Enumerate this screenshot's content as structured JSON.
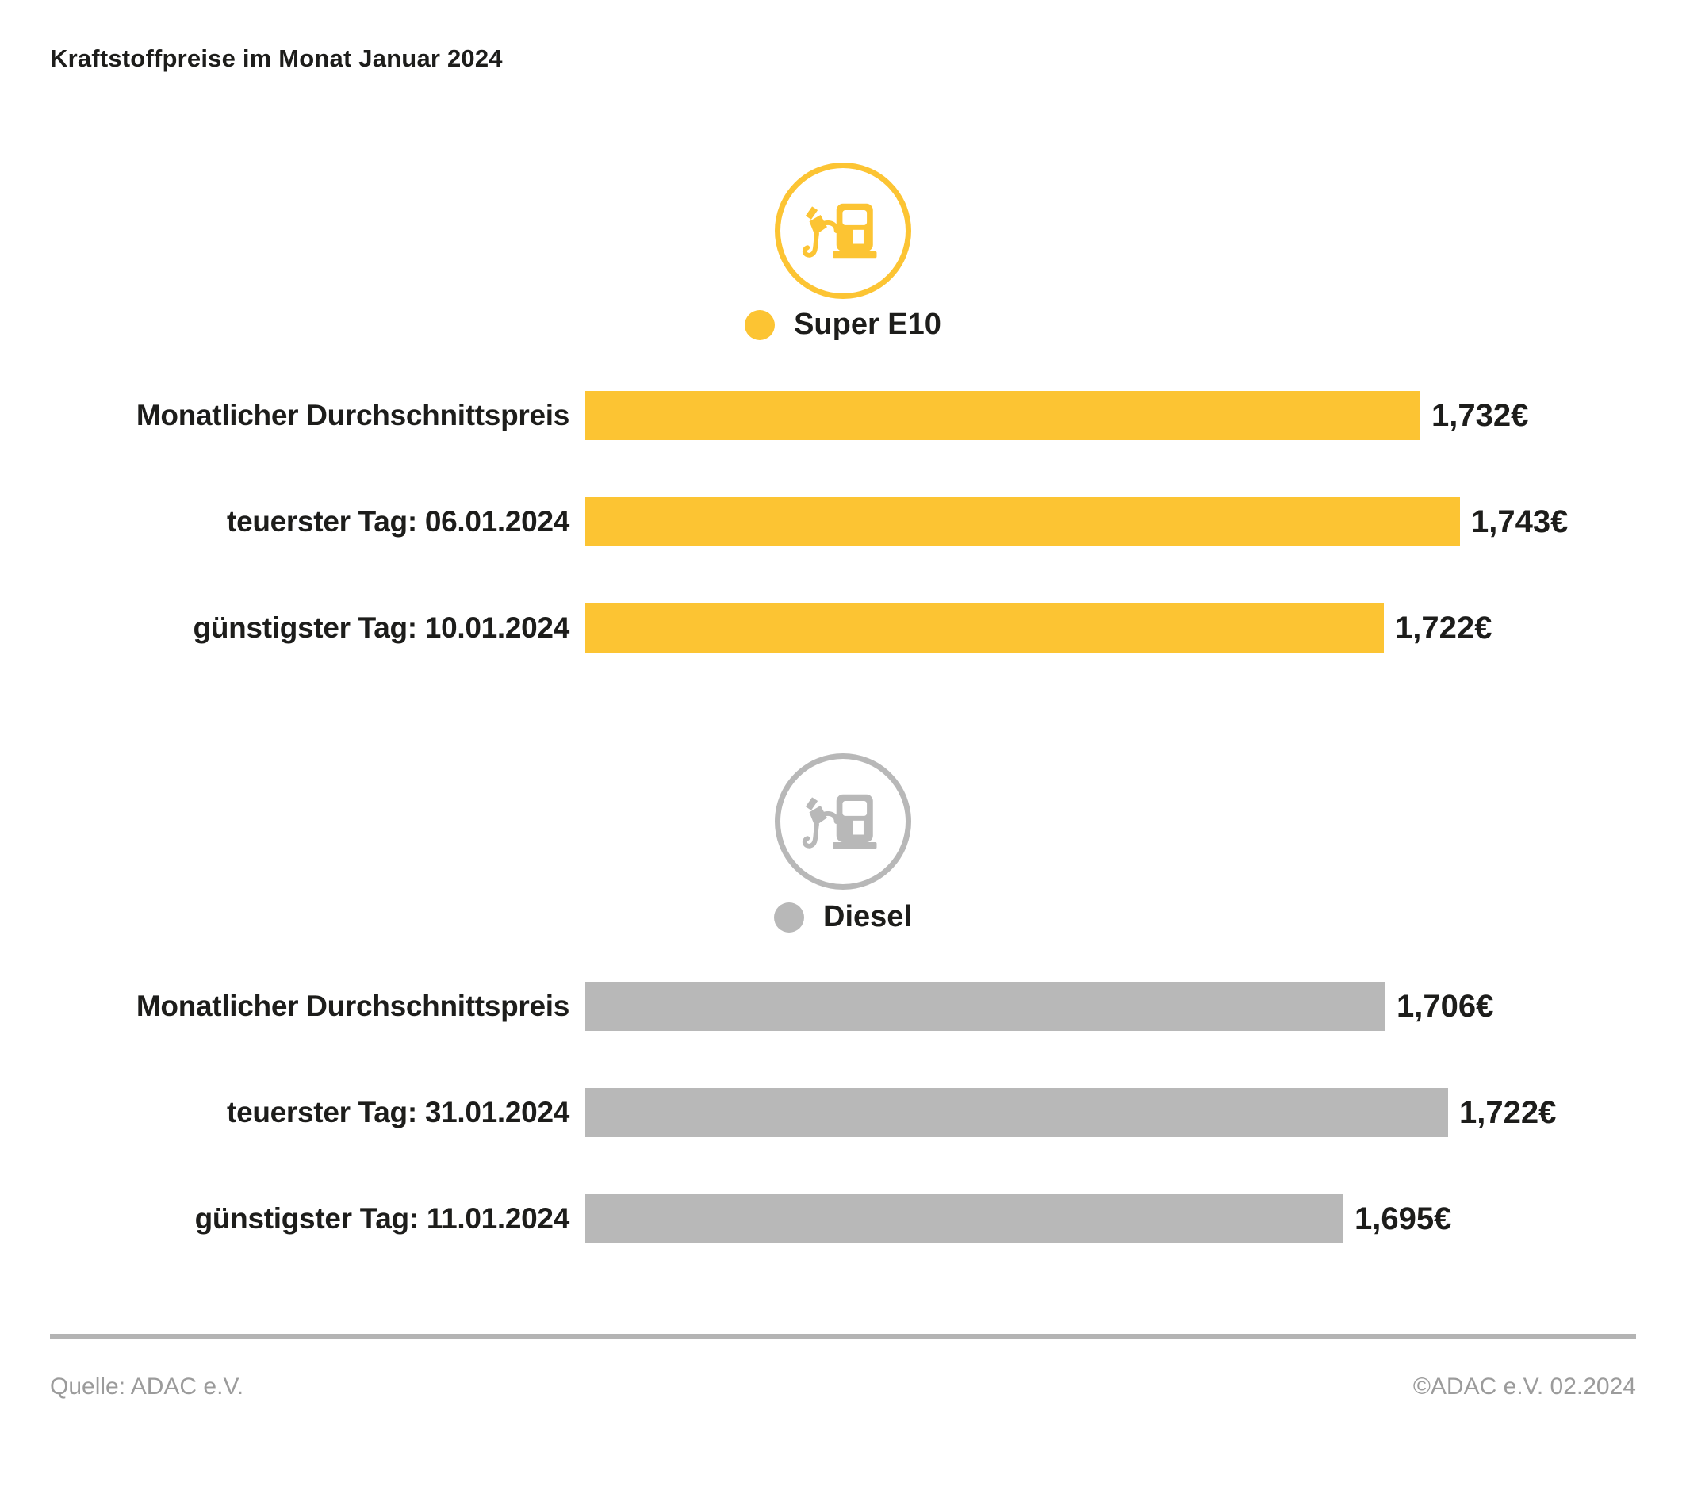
{
  "title": "Kraftstoffpreise im Monat Januar 2024",
  "colors": {
    "super_yellow": "#FCC433",
    "diesel_gray": "#B8B8B8",
    "text_dark": "#1D1D1B",
    "footer_gray": "#9B9B9B",
    "divider_gray": "#B4B4B4",
    "background": "#FFFFFF"
  },
  "sections": [
    {
      "legend_label": "Super E10",
      "icon": "fuel-pump-icon",
      "rows": [
        {
          "label": "Monatlicher Durchschnittspreis",
          "value_label": "1,732€"
        },
        {
          "label": "teuerster Tag: 06.01.2024",
          "value_label": "1,743€"
        },
        {
          "label": "günstigster Tag: 10.01.2024",
          "value_label": "1,722€"
        }
      ]
    },
    {
      "legend_label": "Diesel",
      "icon": "fuel-pump-icon",
      "rows": [
        {
          "label": "Monatlicher Durchschnittspreis",
          "value_label": "1,706€"
        },
        {
          "label": "teuerster Tag: 31.01.2024",
          "value_label": "1,722€"
        },
        {
          "label": "günstigster Tag: 11.01.2024",
          "value_label": "1,695€"
        }
      ]
    }
  ],
  "footer": {
    "source": "Quelle: ADAC e.V.",
    "copyright": "©ADAC e.V. 02.2024"
  },
  "chart_data": [
    {
      "type": "bar",
      "orientation": "horizontal",
      "section": "Super E10",
      "color": "#FCC433",
      "categories": [
        "Monatlicher Durchschnittspreis",
        "teuerster Tag: 06.01.2024",
        "günstigster Tag: 10.01.2024"
      ],
      "values": [
        1.732,
        1.743,
        1.722
      ],
      "value_labels": [
        "1,732€",
        "1,743€",
        "1,722€"
      ],
      "unit": "€",
      "xlim": [
        1.5,
        1.77
      ],
      "grid": false,
      "legend_position": "top-center"
    },
    {
      "type": "bar",
      "orientation": "horizontal",
      "section": "Diesel",
      "color": "#B8B8B8",
      "categories": [
        "Monatlicher Durchschnittspreis",
        "teuerster Tag: 31.01.2024",
        "günstigster Tag: 11.01.2024"
      ],
      "values": [
        1.706,
        1.722,
        1.695
      ],
      "value_labels": [
        "1,706€",
        "1,722€",
        "1,695€"
      ],
      "unit": "€",
      "xlim": [
        1.5,
        1.75
      ],
      "grid": false,
      "legend_position": "top-center"
    }
  ]
}
